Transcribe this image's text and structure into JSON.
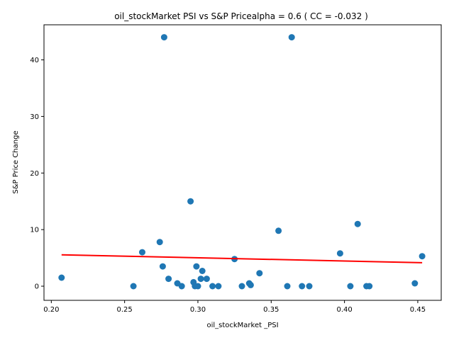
{
  "chart_data": {
    "type": "scatter",
    "title": "oil_stockMarket  PSI vs S&P Pricealpha = 0.6 ( CC = -0.032 )",
    "xlabel": "oil_stockMarket _PSI",
    "ylabel": "S&P Price Change",
    "xlim": [
      0.195,
      0.466
    ],
    "ylim": [
      -2.5,
      46.2
    ],
    "xticks": [
      0.2,
      0.25,
      0.3,
      0.35,
      0.4,
      0.45
    ],
    "xtick_labels": [
      "0.20",
      "0.25",
      "0.30",
      "0.35",
      "0.40",
      "0.45"
    ],
    "yticks": [
      0,
      10,
      20,
      30,
      40
    ],
    "ytick_labels": [
      "0",
      "10",
      "20",
      "30",
      "40"
    ],
    "grid": false,
    "legend": "none",
    "marker_color": "#1f77b4",
    "line_color": "#ff0000",
    "series": [
      {
        "kind": "points",
        "points": [
          [
            0.207,
            1.5
          ],
          [
            0.256,
            0.0
          ],
          [
            0.262,
            6.0
          ],
          [
            0.274,
            7.8
          ],
          [
            0.276,
            3.5
          ],
          [
            0.277,
            44.0
          ],
          [
            0.28,
            1.3
          ],
          [
            0.286,
            0.5
          ],
          [
            0.289,
            0.0
          ],
          [
            0.295,
            15.0
          ],
          [
            0.297,
            0.7
          ],
          [
            0.298,
            0.0
          ],
          [
            0.299,
            3.5
          ],
          [
            0.3,
            0.0
          ],
          [
            0.302,
            1.3
          ],
          [
            0.303,
            2.7
          ],
          [
            0.306,
            1.3
          ],
          [
            0.31,
            0.0
          ],
          [
            0.314,
            0.0
          ],
          [
            0.325,
            4.8
          ],
          [
            0.33,
            0.0
          ],
          [
            0.335,
            0.5
          ],
          [
            0.336,
            0.2
          ],
          [
            0.342,
            2.3
          ],
          [
            0.355,
            9.8
          ],
          [
            0.361,
            0.0
          ],
          [
            0.364,
            44.0
          ],
          [
            0.371,
            0.0
          ],
          [
            0.376,
            0.0
          ],
          [
            0.397,
            5.8
          ],
          [
            0.404,
            0.0
          ],
          [
            0.409,
            11.0
          ],
          [
            0.415,
            0.0
          ],
          [
            0.417,
            0.0
          ],
          [
            0.448,
            0.5
          ],
          [
            0.453,
            5.3
          ]
        ]
      },
      {
        "kind": "fit-line",
        "points": [
          [
            0.207,
            5.55
          ],
          [
            0.453,
            4.15
          ]
        ]
      }
    ]
  }
}
